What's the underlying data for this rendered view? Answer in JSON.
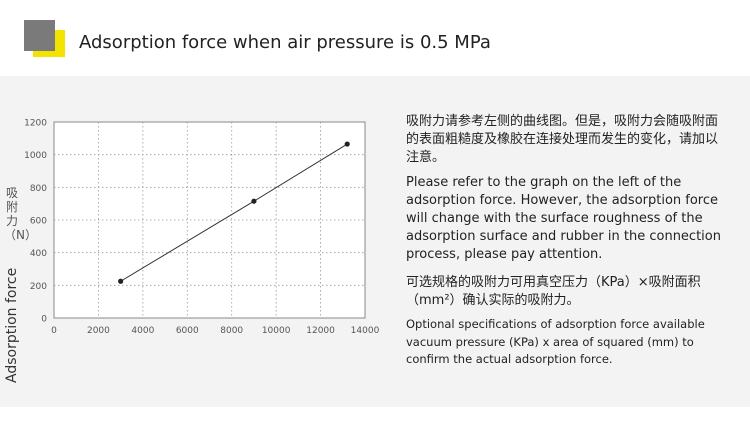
{
  "header": {
    "title": "Adsorption force when air pressure is 0.5 MPa",
    "accent_yellow": "#f2e400",
    "accent_gray": "#7a7a7a"
  },
  "chart_data": {
    "type": "line",
    "x": [
      3000,
      9000,
      13200
    ],
    "values": [
      225,
      715,
      1065
    ],
    "xlim": [
      0,
      14000
    ],
    "ylim": [
      0,
      1200
    ],
    "xticks": [
      "0",
      "2000",
      "4000",
      "6000",
      "8000",
      "10000",
      "12000",
      "14000"
    ],
    "yticks": [
      "0",
      "200",
      "400",
      "600",
      "800",
      "1000",
      "1200"
    ],
    "ylabel": "Adsorption force",
    "ylabel_cn": "吸附力（N）",
    "xlabel": "",
    "title": "",
    "grid": true,
    "grid_style": "dotted"
  },
  "notes": {
    "cn_1": "吸附力请参考左侧的曲线图。但是，吸附力会随吸附面的表面粗糙度及橡胶在连接处理而发生的变化，请加以注意。",
    "en_1": "Please refer to the graph on the left of the adsorption force. However, the adsorption force will change with the surface roughness of the adsorption surface and rubber in the connection process, please pay attention.",
    "cn_2": "可选规格的吸附力可用真空压力（KPa）×吸附面积（mm²）确认实际的吸附力。",
    "en_2": "Optional specifications of adsorption force available vacuum pressure (KPa) x area of squared (mm) to confirm the actual adsorption force."
  }
}
